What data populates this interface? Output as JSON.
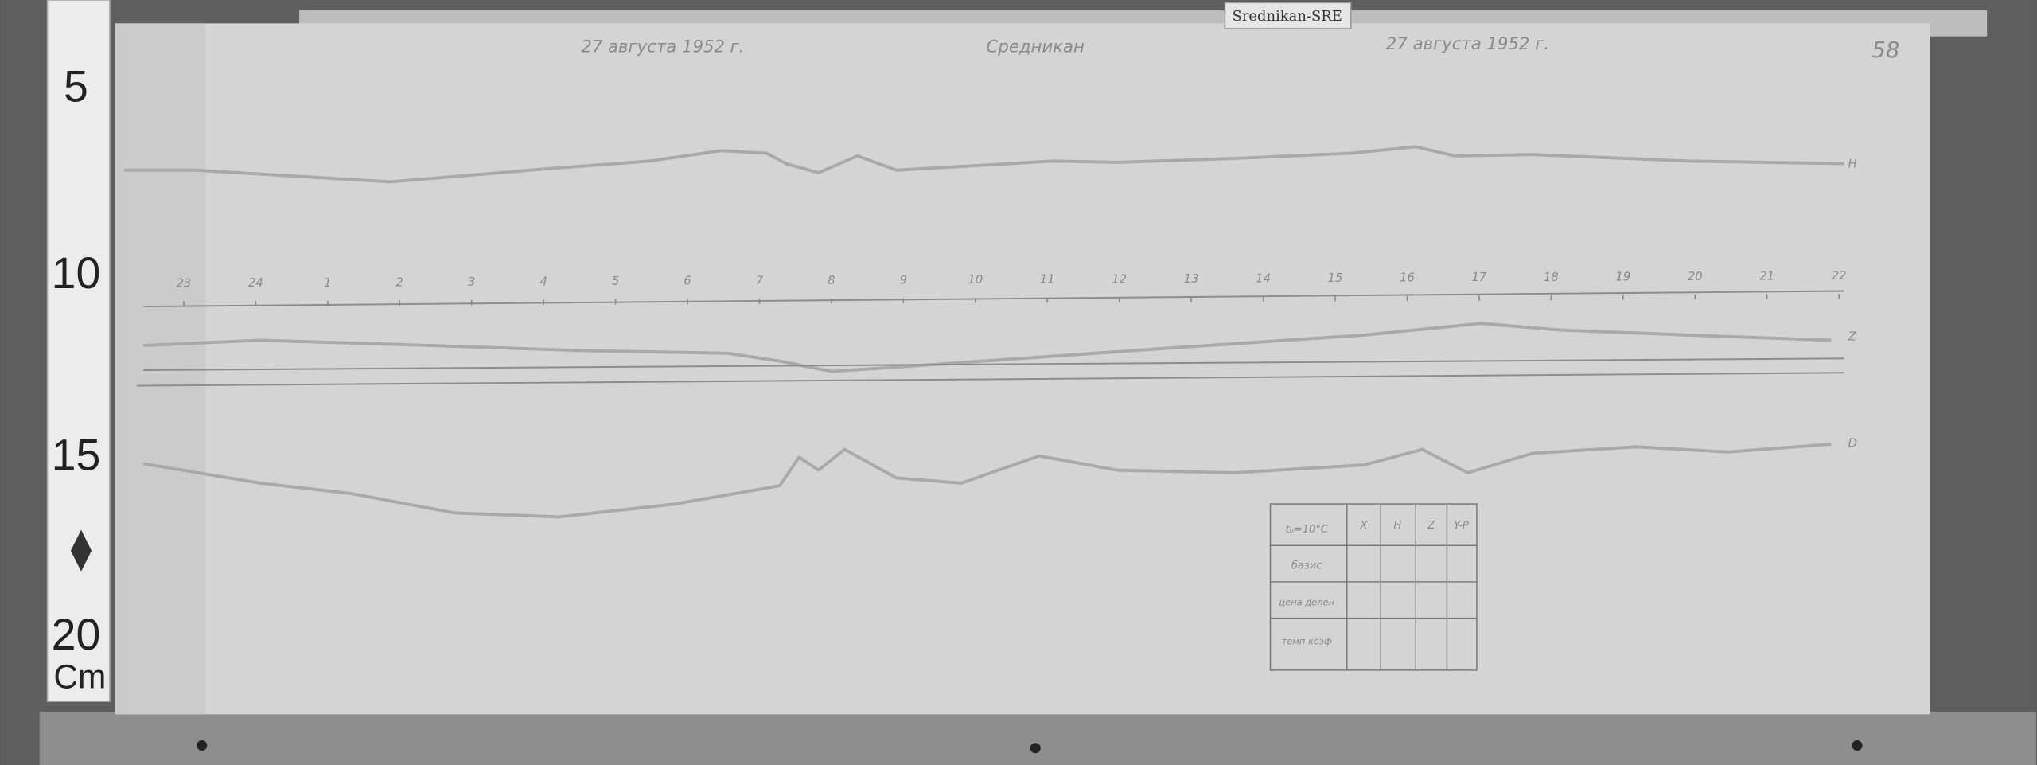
{
  "header": {
    "station_tag": "Srednikan-SRE",
    "date_left": "27 августа 1952 г.",
    "station": "Средникан",
    "date_right": "27 августа 1952 г.",
    "sheet_number": "58"
  },
  "ruler": {
    "marks": [
      "5",
      "10",
      "15",
      "20"
    ],
    "unit": "Cm"
  },
  "hours": [
    "23",
    "24",
    "1",
    "2",
    "3",
    "4",
    "5",
    "6",
    "7",
    "8",
    "9",
    "10",
    "11",
    "12",
    "13",
    "14",
    "15",
    "16",
    "17",
    "18",
    "19",
    "20",
    "21",
    "22"
  ],
  "trace_labels": {
    "h": "H",
    "z": "Z",
    "d": "D"
  },
  "table": {
    "header": [
      "t₀=10°C",
      "X",
      "H",
      "Z",
      "Y-P"
    ],
    "rows": [
      "базис",
      "цена делен",
      "темп коэф"
    ]
  }
}
